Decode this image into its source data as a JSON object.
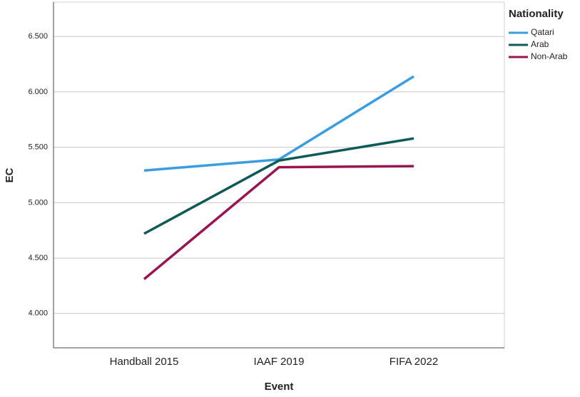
{
  "chart_data": {
    "type": "line",
    "x_label": "Event",
    "y_label": "EC",
    "legend_title": "Nationality",
    "categories": [
      "Handball 2015",
      "IAAF 2019",
      "FIFA 2022"
    ],
    "series": [
      {
        "name": "Qatari",
        "color": "#3a9de0",
        "values": [
          5.29,
          5.39,
          6.14
        ]
      },
      {
        "name": "Arab",
        "color": "#0e5a56",
        "values": [
          4.72,
          5.38,
          5.58
        ]
      },
      {
        "name": "Non-Arab",
        "color": "#971651",
        "values": [
          4.31,
          5.32,
          5.33
        ]
      }
    ],
    "ylim": [
      3.69,
      6.81
    ],
    "yticks": [
      {
        "value": 4.0,
        "label": "4.000"
      },
      {
        "value": 4.5,
        "label": "4.500"
      },
      {
        "value": 5.0,
        "label": "5.000"
      },
      {
        "value": 5.5,
        "label": "5.500"
      },
      {
        "value": 6.0,
        "label": "6.000"
      },
      {
        "value": 6.5,
        "label": "6.500"
      }
    ],
    "grid": true,
    "legend": "top-right"
  }
}
